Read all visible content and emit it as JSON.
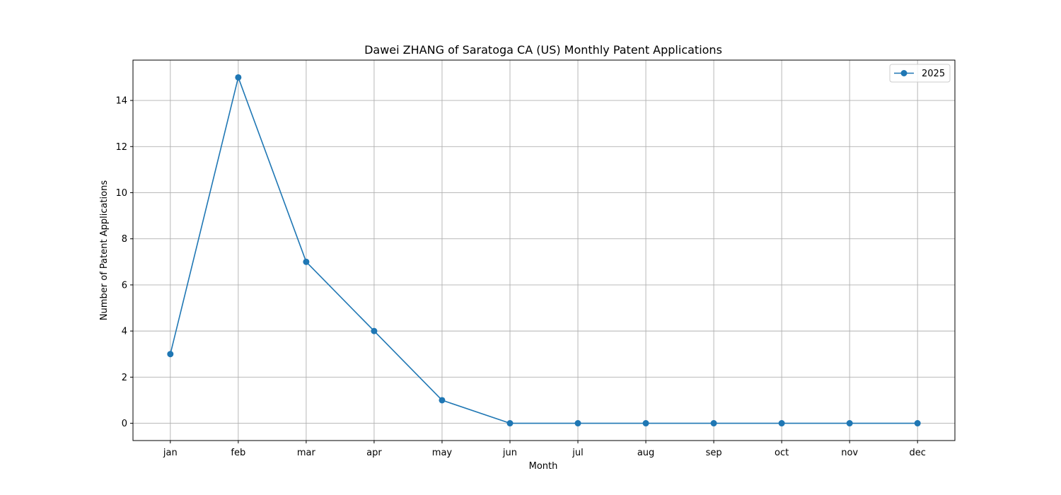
{
  "chart_data": {
    "type": "line",
    "title": "Dawei ZHANG of Saratoga CA (US) Monthly Patent Applications",
    "xlabel": "Month",
    "ylabel": "Number of Patent Applications",
    "categories": [
      "jan",
      "feb",
      "mar",
      "apr",
      "may",
      "jun",
      "jul",
      "aug",
      "sep",
      "oct",
      "nov",
      "dec"
    ],
    "series": [
      {
        "name": "2025",
        "values": [
          3,
          15,
          7,
          4,
          1,
          0,
          0,
          0,
          0,
          0,
          0,
          0
        ],
        "color": "#1f77b4",
        "marker": "circle"
      }
    ],
    "ylim": [
      -0.75,
      15.75
    ],
    "yticks": [
      0,
      2,
      4,
      6,
      8,
      10,
      12,
      14
    ],
    "grid": true,
    "legend_position": "top-right"
  }
}
